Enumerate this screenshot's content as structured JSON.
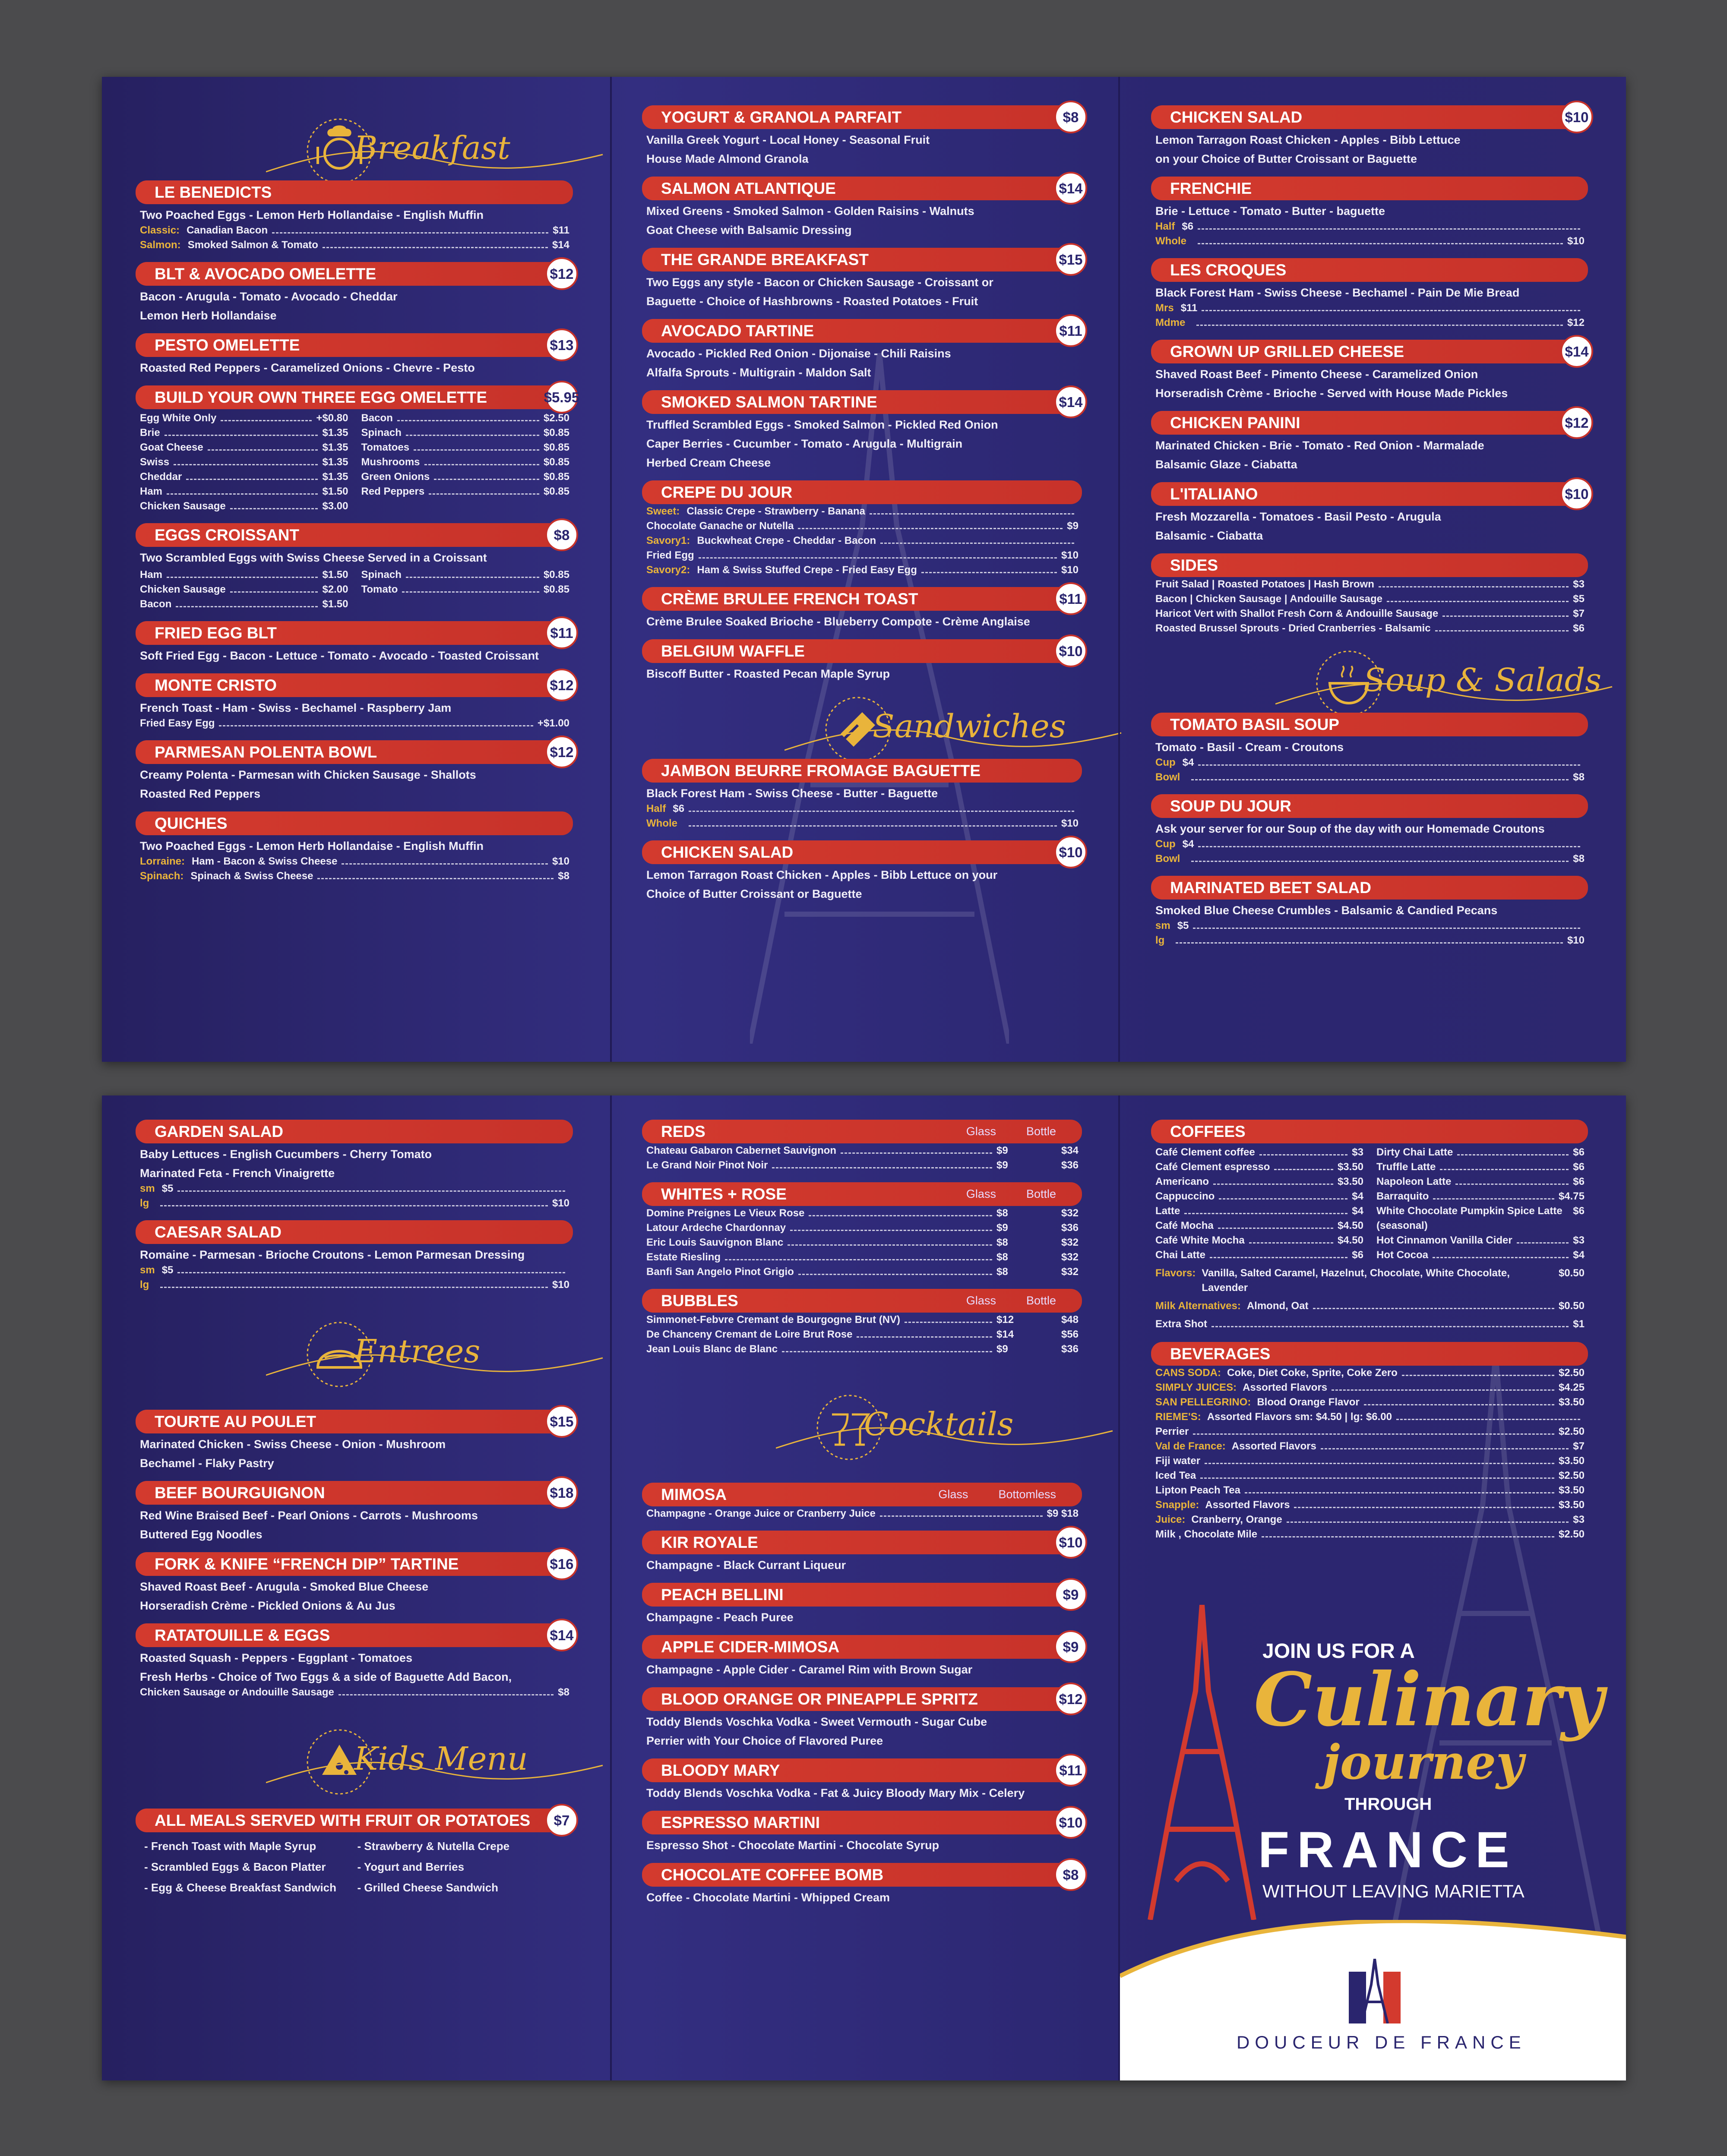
{
  "top": {
    "breakfast_title": "Breakfast",
    "sandwiches_title": "Sandwiches",
    "soups_title": "Soup & Salads",
    "col1": [
      {
        "name": "LE BENEDICTS",
        "desc": "Two Poached Eggs  -  Lemon Herb Hollandaise  -  English Muffin",
        "rows": [
          {
            "label": "Classic:",
            "text": "Canadian Bacon",
            "price": "$11"
          },
          {
            "label": "Salmon:",
            "text": "Smoked Salmon & Tomato",
            "price": "$14"
          }
        ]
      },
      {
        "name": "BLT & AVOCADO OMELETTE",
        "price": "$12",
        "desc": "Bacon  -  Arugula  -  Tomato  -  Avocado  -  Cheddar\nLemon Herb Hollandaise"
      },
      {
        "name": "PESTO OMELETTE",
        "price": "$13",
        "desc": "Roasted Red Peppers  -  Caramelized Onions  -  Chevre  -  Pesto"
      },
      {
        "name": "BUILD YOUR OWN THREE EGG OMELETTE",
        "price": "$5.95",
        "left": [
          [
            "Egg White Only",
            "+$0.80"
          ],
          [
            "Brie",
            "$1.35"
          ],
          [
            "Goat Cheese",
            "$1.35"
          ],
          [
            "Swiss",
            "$1.35"
          ],
          [
            "Cheddar",
            "$1.35"
          ],
          [
            "Ham",
            "$1.50"
          ],
          [
            "Chicken Sausage",
            "$3.00"
          ]
        ],
        "right": [
          [
            "Bacon",
            "$2.50"
          ],
          [
            "Spinach",
            "$0.85"
          ],
          [
            "Tomatoes",
            "$0.85"
          ],
          [
            "Mushrooms",
            "$0.85"
          ],
          [
            "Green Onions",
            "$0.85"
          ],
          [
            "Red Peppers",
            "$0.85"
          ]
        ]
      },
      {
        "name": "EGGS CROISSANT",
        "price": "$8",
        "desc": "Two Scrambled Eggs with Swiss Cheese Served in a Croissant",
        "left": [
          [
            "Ham",
            "$1.50"
          ],
          [
            "Chicken Sausage",
            "$2.00"
          ],
          [
            "Bacon",
            "$1.50"
          ]
        ],
        "right": [
          [
            "Spinach",
            "$0.85"
          ],
          [
            "Tomato",
            "$0.85"
          ]
        ]
      },
      {
        "name": "FRIED EGG BLT",
        "price": "$11",
        "desc": "Soft Fried Egg  -  Bacon  -  Lettuce  -  Tomato  -  Avocado  -  Toasted Croissant"
      },
      {
        "name": "MONTE CRISTO",
        "price": "$12",
        "desc": "French Toast  -  Ham  -  Swiss  -  Bechamel  -  Raspberry Jam",
        "rows": [
          {
            "label": "",
            "text": "Fried Easy Egg",
            "price": "+$1.00"
          }
        ]
      },
      {
        "name": "PARMESAN POLENTA BOWL",
        "price": "$12",
        "desc": "Creamy Polenta  -  Parmesan  with Chicken Sausage  -  Shallots\nRoasted Red Peppers"
      },
      {
        "name": "QUICHES",
        "desc": "Two Poached Eggs  -  Lemon Herb Hollandaise  -  English Muffin",
        "rows": [
          {
            "label": "Lorraine:",
            "text": "Ham  -  Bacon & Swiss Cheese",
            "price": "$10"
          },
          {
            "label": "Spinach:",
            "text": "Spinach & Swiss Cheese",
            "price": "$8"
          }
        ]
      }
    ],
    "col2": [
      {
        "name": "YOGURT & GRANOLA PARFAIT",
        "price": "$8",
        "desc": "Vanilla Greek Yogurt  -  Local Honey  -  Seasonal Fruit\nHouse Made Almond Granola"
      },
      {
        "name": "SALMON ATLANTIQUE",
        "price": "$14",
        "desc": "Mixed Greens  -  Smoked Salmon  -  Golden Raisins  -  Walnuts\nGoat Cheese with Balsamic Dressing"
      },
      {
        "name": "THE GRANDE BREAKFAST",
        "price": "$15",
        "desc": "Two Eggs any style  -  Bacon or Chicken Sausage  -  Croissant or\nBaguette  -  Choice of Hashbrowns  -  Roasted Potatoes  -  Fruit"
      },
      {
        "name": "AVOCADO TARTINE",
        "price": "$11",
        "desc": "Avocado  -  Pickled Red Onion  -  Dijonaise  -  Chili Raisins\nAlfalfa Sprouts  -  Multigrain  -  Maldon Salt"
      },
      {
        "name": "SMOKED SALMON TARTINE",
        "price": "$14",
        "desc": "Truffled Scrambled Eggs  -  Smoked Salmon  -  Pickled Red Onion\nCaper Berries  -  Cucumber  -  Tomato  -  Arugula  -  Multigrain\nHerbed Cream Cheese"
      },
      {
        "name": "CREPE DU JOUR",
        "rows": [
          {
            "label": "Sweet:",
            "text": "Classic Crepe  -  Strawberry  -  Banana",
            "price": ""
          },
          {
            "label": "",
            "text": "Chocolate Ganache or Nutella",
            "price": "$9"
          },
          {
            "label": "Savory1:",
            "text": "Buckwheat Crepe  -  Cheddar  -  Bacon",
            "price": ""
          },
          {
            "label": "",
            "text": "Fried Egg",
            "price": "$10"
          },
          {
            "label": "Savory2:",
            "text": "Ham & Swiss Stuffed Crepe  -  Fried Easy Egg",
            "price": "$10"
          }
        ]
      },
      {
        "name": "CRÈME BRULEE FRENCH TOAST",
        "price": "$11",
        "desc": "Crème Brulee Soaked Brioche  -  Blueberry Compote  -  Crème Anglaise"
      },
      {
        "name": "BELGIUM WAFFLE",
        "price": "$10",
        "desc": "Biscoff Butter  -  Roasted Pecan Maple Syrup"
      }
    ],
    "col2b": [
      {
        "name": "JAMBON BEURRE FROMAGE BAGUETTE",
        "desc": "Black Forest Ham  -  Swiss Cheese  -  Butter  -  Baguette",
        "rows": [
          {
            "label": "Half",
            "text": "$6",
            "price": ""
          },
          {
            "label": "Whole",
            "text": "",
            "price": "$10"
          }
        ]
      },
      {
        "name": "CHICKEN SALAD",
        "price": "$10",
        "desc": "Lemon Tarragon Roast Chicken  -  Apples  -  Bibb Lettuce on your\nChoice of Butter Croissant or Baguette"
      }
    ],
    "col3": [
      {
        "name": "CHICKEN SALAD",
        "price": "$10",
        "desc": "Lemon Tarragon Roast Chicken  -  Apples  -  Bibb Lettuce\non your Choice of Butter Croissant or Baguette"
      },
      {
        "name": "FRENCHIE",
        "desc": "Brie  -  Lettuce  -  Tomato  -  Butter  -  baguette",
        "rows": [
          {
            "label": "Half",
            "text": "$6",
            "price": ""
          },
          {
            "label": "Whole",
            "text": "",
            "price": "$10"
          }
        ]
      },
      {
        "name": "LES CROQUES",
        "desc": "Black Forest Ham  -  Swiss Cheese  -  Bechamel  -  Pain De Mie Bread",
        "rows": [
          {
            "label": "Mrs",
            "text": "$11",
            "price": ""
          },
          {
            "label": "Mdme",
            "text": "",
            "price": "$12"
          }
        ]
      },
      {
        "name": "GROWN UP GRILLED CHEESE",
        "price": "$14",
        "desc": "Shaved Roast Beef  -  Pimento Cheese  -  Caramelized Onion\nHorseradish Crème  -  Brioche  -  Served with House Made Pickles"
      },
      {
        "name": "CHICKEN PANINI",
        "price": "$12",
        "desc": "Marinated Chicken  -  Brie  -  Tomato  -  Red Onion  -  Marmalade\nBalsamic Glaze  -  Ciabatta"
      },
      {
        "name": "L'ITALIANO",
        "price": "$10",
        "desc": "Fresh Mozzarella  -  Tomatoes  -  Basil Pesto  -  Arugula\nBalsamic  -  Ciabatta"
      },
      {
        "name": "SIDES",
        "rows": [
          {
            "label": "",
            "text": "Fruit Salad  |  Roasted Potatoes  |  Hash Brown",
            "price": "$3"
          },
          {
            "label": "",
            "text": "Bacon | Chicken Sausage | Andouille Sausage",
            "price": "$5"
          },
          {
            "label": "",
            "text": "Haricot Vert with Shallot Fresh Corn & Andouille Sausage",
            "price": "$7"
          },
          {
            "label": "",
            "text": "Roasted Brussel Sprouts  -  Dried Cranberries  -  Balsamic",
            "price": "$6"
          }
        ]
      }
    ],
    "col3b": [
      {
        "name": "TOMATO BASIL SOUP",
        "desc": "Tomato  -  Basil  -  Cream  -  Croutons",
        "rows": [
          {
            "label": "Cup",
            "text": "$4",
            "price": ""
          },
          {
            "label": "Bowl",
            "text": "",
            "price": "$8"
          }
        ]
      },
      {
        "name": "SOUP DU JOUR",
        "desc": "Ask your server for our Soup of the day with our Homemade Croutons",
        "rows": [
          {
            "label": "Cup",
            "text": "$4",
            "price": ""
          },
          {
            "label": "Bowl",
            "text": "",
            "price": "$8"
          }
        ]
      },
      {
        "name": "MARINATED BEET SALAD",
        "desc": "Smoked Blue Cheese Crumbles  -  Balsamic & Candied Pecans",
        "rows": [
          {
            "label": "sm",
            "text": "$5",
            "price": ""
          },
          {
            "label": "lg",
            "text": "",
            "price": "$10"
          }
        ]
      }
    ]
  },
  "bottom": {
    "entrees_title": "Entrees",
    "kids_title": "Kids Menu",
    "cocktails_title": "Cocktails",
    "salads": [
      {
        "name": "GARDEN SALAD",
        "desc": "Baby Lettuces  -  English Cucumbers  -  Cherry Tomato\nMarinated Feta  -  French Vinaigrette",
        "rows": [
          {
            "label": "sm",
            "text": "$5",
            "price": ""
          },
          {
            "label": "lg",
            "text": "",
            "price": "$10"
          }
        ]
      },
      {
        "name": "CAESAR SALAD",
        "desc": "Romaine  -  Parmesan  -  Brioche Croutons  -  Lemon Parmesan Dressing",
        "rows": [
          {
            "label": "sm",
            "text": "$5",
            "price": ""
          },
          {
            "label": "lg",
            "text": "",
            "price": "$10"
          }
        ]
      }
    ],
    "entrees": [
      {
        "name": "TOURTE AU POULET",
        "price": "$15",
        "desc": "Marinated Chicken  -  Swiss Cheese  -  Onion  -  Mushroom\nBechamel  -  Flaky Pastry"
      },
      {
        "name": "BEEF BOURGUIGNON",
        "price": "$18",
        "desc": "Red Wine Braised Beef  -  Pearl Onions  -  Carrots  -  Mushrooms\nButtered Egg Noodles"
      },
      {
        "name": "FORK & KNIFE “FRENCH DIP” TARTINE",
        "price": "$16",
        "desc": "Shaved Roast Beef  -  Arugula  -  Smoked Blue Cheese\nHorseradish Crème  -  Pickled Onions & Au Jus"
      },
      {
        "name": "RATATOUILLE & EGGS",
        "price": "$14",
        "desc": "Roasted Squash  -  Peppers  -  Eggplant  -  Tomatoes\nFresh Herbs  -  Choice of Two Eggs & a side of Baguette Add Bacon,",
        "rows": [
          {
            "label": "",
            "text": "Chicken Sausage or Andouille Sausage",
            "price": "$8"
          }
        ]
      }
    ],
    "kids": {
      "name": "ALL MEALS SERVED WITH FRUIT OR POTATOES",
      "price": "$7",
      "items": [
        "-  French Toast with Maple Syrup",
        "-  Strawberry & Nutella Crepe",
        "-  Scrambled Eggs & Bacon Platter",
        "-  Yogurt and Berries",
        "-  Egg & Cheese Breakfast Sandwich",
        "-  Grilled Cheese Sandwich"
      ]
    },
    "wines": [
      {
        "name": "REDS",
        "h1": "Glass",
        "h2": "Bottle",
        "items": [
          [
            "Chateau Gabaron Cabernet Sauvignon",
            "$9",
            "$34"
          ],
          [
            "Le Grand Noir Pinot Noir",
            "$9",
            "$36"
          ]
        ]
      },
      {
        "name": "WHITES + ROSE",
        "h1": "Glass",
        "h2": "Bottle",
        "items": [
          [
            "Domine Preignes Le Vieux Rose",
            "$8",
            "$32"
          ],
          [
            "Latour Ardeche Chardonnay",
            "$9",
            "$36"
          ],
          [
            "Eric Louis Sauvignon Blanc",
            "$8",
            "$32"
          ],
          [
            "Estate Riesling",
            "$8",
            "$32"
          ],
          [
            "Banfi San Angelo Pinot Grigio",
            "$8",
            "$32"
          ]
        ]
      },
      {
        "name": "BUBBLES",
        "h1": "Glass",
        "h2": "Bottle",
        "items": [
          [
            "Simmonet-Febvre Cremant de Bourgogne Brut (NV)",
            "$12",
            "$48"
          ],
          [
            "De Chanceny Cremant de Loire Brut Rose",
            "$14",
            "$56"
          ],
          [
            "Jean Louis Blanc de Blanc",
            "$9",
            "$36"
          ]
        ]
      }
    ],
    "cocktails": [
      {
        "name": "MIMOSA",
        "h1": "Glass",
        "h2": "Bottomless",
        "rows": [
          {
            "label": "",
            "text": "Champagne  -  Orange Juice or Cranberry Juice",
            "price": "$9     $18"
          }
        ]
      },
      {
        "name": "KIR ROYALE",
        "price": "$10",
        "desc": "Champagne  -  Black Currant Liqueur"
      },
      {
        "name": "PEACH BELLINI",
        "price": "$9",
        "desc": "Champagne  -  Peach Puree"
      },
      {
        "name": "APPLE CIDER-MIMOSA",
        "price": "$9",
        "desc": "Champagne  -  Apple Cider  -  Caramel Rim  with Brown Sugar"
      },
      {
        "name": "BLOOD ORANGE OR PINEAPPLE SPRITZ",
        "price": "$12",
        "desc": "Toddy Blends Voschka Vodka  -  Sweet Vermouth  -  Sugar Cube\nPerrier with Your Choice of Flavored Puree"
      },
      {
        "name": "BLOODY MARY",
        "price": "$11",
        "desc": "Toddy Blends Voschka Vodka  -  Fat & Juicy Bloody Mary Mix  -  Celery"
      },
      {
        "name": "ESPRESSO MARTINI",
        "price": "$10",
        "desc": "Espresso Shot  -  Chocolate Martini  -  Chocolate Syrup"
      },
      {
        "name": "CHOCOLATE COFFEE BOMB",
        "price": "$8",
        "desc": "Coffee  -  Chocolate Martini  -  Whipped Cream"
      }
    ],
    "coffees": {
      "name": "COFFEES",
      "left": [
        [
          "Café Clement coffee",
          "$3"
        ],
        [
          "Café Clement espresso",
          "$3.50"
        ],
        [
          "Americano",
          "$3.50"
        ],
        [
          "Cappuccino",
          "$4"
        ],
        [
          "Latte",
          "$4"
        ],
        [
          "Café Mocha",
          "$4.50"
        ],
        [
          "Café White Mocha",
          "$4.50"
        ],
        [
          "Chai Latte",
          "$6"
        ]
      ],
      "right": [
        [
          "Dirty Chai Latte",
          "$6"
        ],
        [
          "Truffle Latte",
          "$6"
        ],
        [
          "Napoleon Latte",
          "$6"
        ],
        [
          "Barraquito",
          "$4.75"
        ],
        [
          "White Chocolate Pumpkin Spice Latte (seasonal)",
          "$6"
        ],
        [
          "Hot Cinnamon Vanilla Cider",
          "$3"
        ],
        [
          "Hot Cocoa",
          "$4"
        ]
      ],
      "extras": [
        {
          "label": "Flavors:",
          "text": "Vanilla, Salted Caramel, Hazelnut, Chocolate, White Chocolate, Lavender",
          "price": "$0.50"
        },
        {
          "label": "Milk Alternatives:",
          "text": "Almond, Oat",
          "price": "$0.50"
        },
        {
          "label": "",
          "text": "Extra Shot",
          "price": "$1"
        }
      ]
    },
    "beverages": {
      "name": "BEVERAGES",
      "rows": [
        {
          "label": "CANS SODA:",
          "text": "Coke, Diet Coke, Sprite, Coke Zero",
          "price": "$2.50"
        },
        {
          "label": "SIMPLY JUICES:",
          "text": "Assorted Flavors",
          "price": "$4.25"
        },
        {
          "label": "SAN PELLEGRINO:",
          "text": "Blood Orange Flavor",
          "price": "$3.50"
        },
        {
          "label": "RIEME'S:",
          "text": "Assorted Flavors   sm: $4.50  |  lg: $6.00",
          "price": ""
        },
        {
          "label": "",
          "text": "Perrier",
          "price": "$2.50"
        },
        {
          "label": "Val de France:",
          "text": "Assorted Flavors",
          "price": "$7"
        },
        {
          "label": "",
          "text": "Fiji water",
          "price": "$3.50"
        },
        {
          "label": "",
          "text": "Iced Tea",
          "price": "$2.50"
        },
        {
          "label": "",
          "text": "Lipton Peach Tea",
          "price": "$3.50"
        },
        {
          "label": "Snapple:",
          "text": "Assorted Flavors",
          "price": "$3.50"
        },
        {
          "label": "Juice:",
          "text": "Cranberry, Orange",
          "price": "$3"
        },
        {
          "label": "",
          "text": "Milk , Chocolate Mile",
          "price": "$2.50"
        }
      ]
    },
    "promo": {
      "join": "JOIN US FOR A",
      "culinary": "Culinary",
      "journey": "journey",
      "through": "THROUGH",
      "france": "FRANCE",
      "without": "WITHOUT LEAVING MARIETTA",
      "brand": "DOUCEUR DE FRANCE"
    }
  },
  "colors": {
    "navy": "#2b2670",
    "red": "#c7322a",
    "gold": "#e9b43b"
  }
}
